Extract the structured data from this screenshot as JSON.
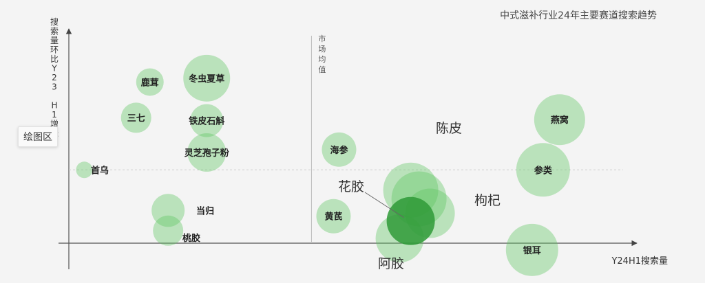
{
  "chart_data": {
    "type": "scatter",
    "title": "中式滋补行业24年主要赛道搜索趋势",
    "xlabel": "Y24H1搜索量",
    "ylabel": "搜索量环比Y23 H1增长",
    "reference_line_label": "市场均值",
    "tooltip_label": "绘图区",
    "points": [
      {
        "name": "鹿茸",
        "x": 1.47,
        "y": 8.4,
        "size": 20,
        "weight": "bold"
      },
      {
        "name": "冬虫夏草",
        "x": 2.5,
        "y": 8.6,
        "size": 34,
        "weight": "bold"
      },
      {
        "name": "三七",
        "x": 1.22,
        "y": 6.55,
        "size": 22,
        "weight": "bold"
      },
      {
        "name": "铁皮石斛",
        "x": 2.5,
        "y": 6.4,
        "size": 24,
        "weight": "bold"
      },
      {
        "name": "灵芝孢子粉",
        "x": 2.5,
        "y": 4.75,
        "size": 28,
        "weight": "bold"
      },
      {
        "name": "首乌",
        "x": 0.28,
        "y": 3.85,
        "size": 12,
        "weight": "bold"
      },
      {
        "name": "当归",
        "x": 1.8,
        "y": 1.75,
        "size": 24,
        "weight": "bold"
      },
      {
        "name": "桃胶",
        "x": 1.8,
        "y": 0.7,
        "size": 22,
        "weight": "bold"
      },
      {
        "name": "海参",
        "x": 4.9,
        "y": 4.9,
        "size": 25,
        "weight": "bold"
      },
      {
        "name": "黄芪",
        "x": 4.8,
        "y": 1.45,
        "size": 25,
        "weight": "bold"
      },
      {
        "name": "花胶",
        "x": 6.2,
        "y": 2.8,
        "size": 40,
        "weight": "normal"
      },
      {
        "name": "陈皮",
        "x": 6.35,
        "y": 2.35,
        "size": 40,
        "weight": "normal"
      },
      {
        "name": "枸杞",
        "x": 6.55,
        "y": 1.6,
        "size": 36,
        "weight": "normal"
      },
      {
        "name": "阿胶",
        "x": 6.0,
        "y": 0.3,
        "size": 35,
        "weight": "normal"
      },
      {
        "name": "燕窝",
        "x": 8.9,
        "y": 6.45,
        "size": 37,
        "weight": "bold"
      },
      {
        "name": "参类",
        "x": 8.6,
        "y": 3.85,
        "size": 39,
        "weight": "bold"
      },
      {
        "name": "银耳",
        "x": 8.4,
        "y": -0.3,
        "size": 38,
        "weight": "bold"
      }
    ],
    "highlight_point": {
      "x": 6.2,
      "y": 1.2,
      "size": 35
    },
    "mean_x": 4.4,
    "mean_y": 3.85,
    "xlim": [
      0,
      10.3
    ],
    "ylim": [
      -1.3,
      10.8
    ],
    "grid": false,
    "legend": "none"
  }
}
